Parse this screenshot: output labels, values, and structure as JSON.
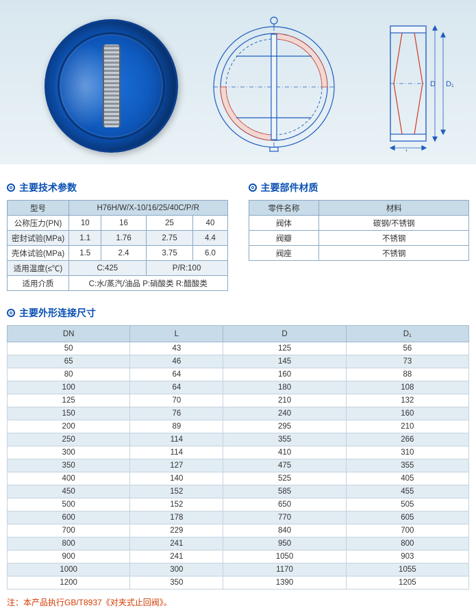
{
  "diagram": {
    "side_labels": {
      "D": "D",
      "D1": "D₁",
      "L": "L"
    },
    "colors": {
      "line": "#1f5cc0",
      "hatch": "#cf3a27",
      "bg_top": "#d8e7ef",
      "bg_bot": "#eaf2f6"
    }
  },
  "tech_params": {
    "title": "主要技术参数",
    "rows": [
      {
        "label": "型号",
        "merged": "H76H/W/X-10/16/25/40C/P/R"
      },
      {
        "label": "公称压力(PN)",
        "cells": [
          "10",
          "16",
          "25",
          "40"
        ]
      },
      {
        "label": "密封试验(MPa)",
        "cells": [
          "1.1",
          "1.76",
          "2.75",
          "4.4"
        ]
      },
      {
        "label": "壳体试验(MPa)",
        "cells": [
          "1.5",
          "2.4",
          "3.75",
          "6.0"
        ]
      },
      {
        "label": "适用温度(≤℃)",
        "split": [
          "C:425",
          "P/R:100"
        ]
      },
      {
        "label": "适用介质",
        "merged": "C:水/蒸汽/油品    P:硝酸类 R:醋酸类"
      }
    ]
  },
  "materials": {
    "title": "主要部件材质",
    "header": [
      "零件名称",
      "材料"
    ],
    "rows": [
      [
        "阀体",
        "碳钢/不锈钢"
      ],
      [
        "阀瓣",
        "不锈钢"
      ],
      [
        "阀座",
        "不锈钢"
      ]
    ]
  },
  "dimensions": {
    "title": "主要外形连接尺寸",
    "header": [
      "DN",
      "L",
      "D",
      "D₁"
    ],
    "rows": [
      [
        "50",
        "43",
        "125",
        "56"
      ],
      [
        "65",
        "46",
        "145",
        "73"
      ],
      [
        "80",
        "64",
        "160",
        "88"
      ],
      [
        "100",
        "64",
        "180",
        "108"
      ],
      [
        "125",
        "70",
        "210",
        "132"
      ],
      [
        "150",
        "76",
        "240",
        "160"
      ],
      [
        "200",
        "89",
        "295",
        "210"
      ],
      [
        "250",
        "114",
        "355",
        "266"
      ],
      [
        "300",
        "114",
        "410",
        "310"
      ],
      [
        "350",
        "127",
        "475",
        "355"
      ],
      [
        "400",
        "140",
        "525",
        "405"
      ],
      [
        "450",
        "152",
        "585",
        "455"
      ],
      [
        "500",
        "152",
        "650",
        "505"
      ],
      [
        "600",
        "178",
        "770",
        "605"
      ],
      [
        "700",
        "229",
        "840",
        "700"
      ],
      [
        "800",
        "241",
        "950",
        "800"
      ],
      [
        "900",
        "241",
        "1050",
        "903"
      ],
      [
        "1000",
        "300",
        "1170",
        "1055"
      ],
      [
        "1200",
        "350",
        "1390",
        "1205"
      ]
    ]
  },
  "footnote": "注：本产品执行GB/T8937《对夹式止回阀》。"
}
